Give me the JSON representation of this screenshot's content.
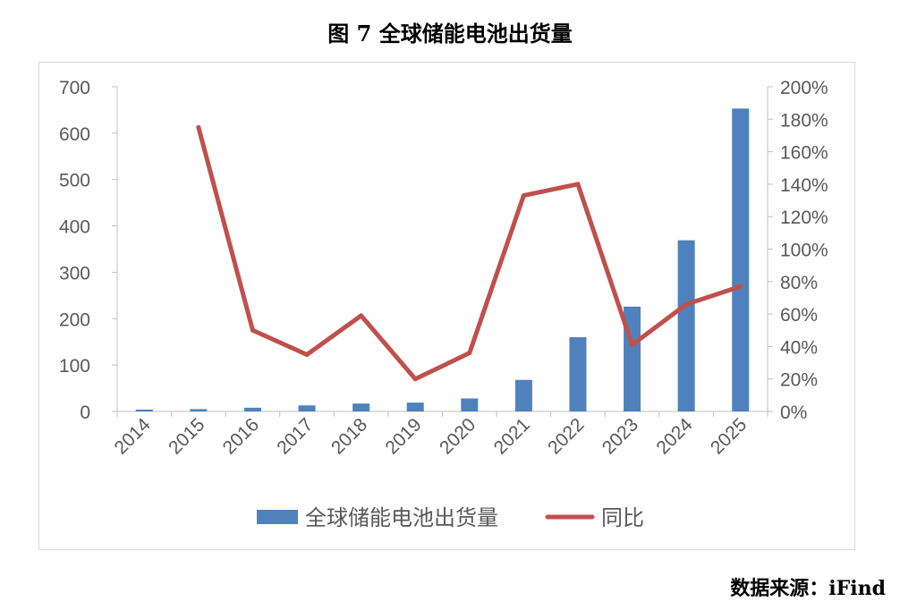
{
  "figure": {
    "title": "图 7 全球储能电池出货量",
    "source": "数据来源：iFind"
  },
  "colors": {
    "bar": "#4f81bd",
    "line": "#c0504d",
    "axis": "#bfbfbf",
    "text": "#595959"
  },
  "chart_data": {
    "type": "bar",
    "categories": [
      "2014",
      "2015",
      "2016",
      "2017",
      "2018",
      "2019",
      "2020",
      "2021",
      "2022",
      "2023",
      "2024",
      "2025"
    ],
    "series": [
      {
        "name": "全球储能电池出货量",
        "type": "bar",
        "axis": "left",
        "values": [
          4,
          5,
          8,
          13,
          17,
          19,
          28,
          68,
          160,
          226,
          369,
          653
        ]
      },
      {
        "name": "同比",
        "type": "line",
        "axis": "right",
        "values": [
          null,
          1.75,
          0.5,
          0.35,
          0.59,
          0.2,
          0.36,
          1.33,
          1.4,
          0.41,
          0.66,
          0.77
        ]
      }
    ],
    "y_left": {
      "min": 0,
      "max": 700,
      "step": 100,
      "ticks": [
        "0",
        "100",
        "200",
        "300",
        "400",
        "500",
        "600",
        "700"
      ]
    },
    "y_right": {
      "min": 0,
      "max": 2.0,
      "step": 0.2,
      "ticks": [
        "0%",
        "20%",
        "40%",
        "60%",
        "80%",
        "100%",
        "120%",
        "140%",
        "160%",
        "180%",
        "200%"
      ]
    },
    "legend": {
      "position": "bottom",
      "items": [
        {
          "label": "全球储能电池出货量",
          "kind": "bar"
        },
        {
          "label": "同比",
          "kind": "line"
        }
      ]
    },
    "grid": false
  }
}
